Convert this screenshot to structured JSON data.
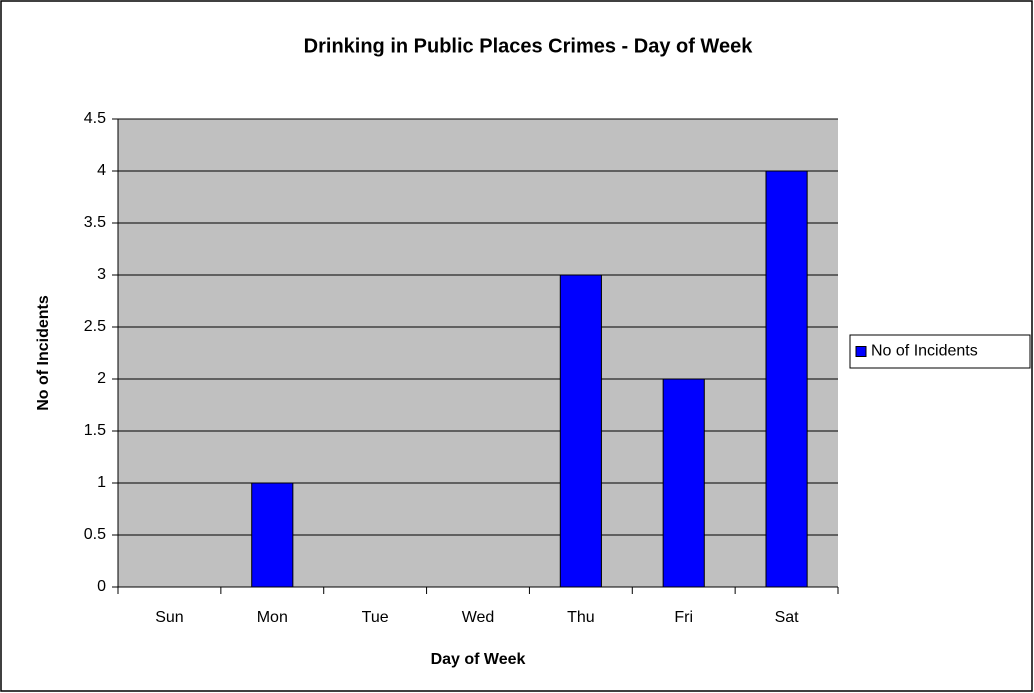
{
  "chart_data": {
    "type": "bar",
    "title": "Drinking in Public Places Crimes - Day of Week",
    "x_label": "Day of Week",
    "y_label": "No of Incidents",
    "categories": [
      "Sun",
      "Mon",
      "Tue",
      "Wed",
      "Thu",
      "Fri",
      "Sat"
    ],
    "series": [
      {
        "name": "No of Incidents",
        "color": "#0000ff",
        "values": [
          0,
          1,
          0,
          0,
          3,
          2,
          4
        ]
      }
    ],
    "ylim": [
      0,
      4.5
    ],
    "yticks": [
      0,
      0.5,
      1,
      1.5,
      2,
      2.5,
      3,
      3.5,
      4,
      4.5
    ],
    "grid": true,
    "legend": "right",
    "plot_background": "#c0c0c0"
  }
}
